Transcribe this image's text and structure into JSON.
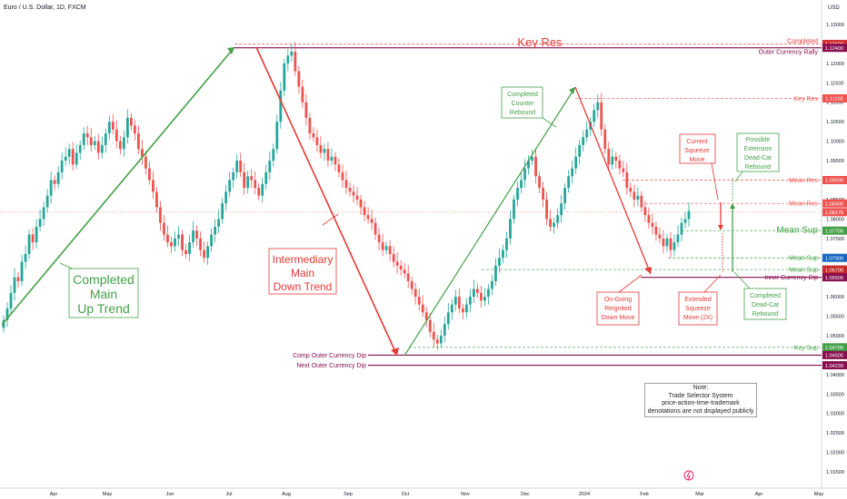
{
  "window": {
    "title": "Euro / U.S. Dollar, 1D, FXCM",
    "currency": "USD"
  },
  "note": {
    "lines": [
      "Note:",
      "Trade Selector System",
      "price-action-time-trademark",
      "denotations are not displayed publicly"
    ]
  },
  "chart_data": {
    "type": "candlestick",
    "title": "Euro / U.S. Dollar, 1D, FXCM",
    "ylim": [
      1.01,
      1.13
    ],
    "y_ticks": [
      "1.13000",
      "1.12500",
      "1.12000",
      "1.11500",
      "1.11000",
      "1.10500",
      "1.10000",
      "1.09500",
      "1.09000",
      "1.08500",
      "1.08000",
      "1.07500",
      "1.07000",
      "1.06500",
      "1.06000",
      "1.05500",
      "1.05000",
      "1.04500",
      "1.04000",
      "1.03500",
      "1.03000",
      "1.02500",
      "1.02000",
      "1.01500"
    ],
    "x_labels": [
      "Apr",
      "May",
      "Jun",
      "Jul",
      "Aug",
      "Sep",
      "Oct",
      "Nov",
      "Dec",
      "2024",
      "Feb",
      "Mar",
      "Apr",
      "May"
    ],
    "price_axis_labels": [
      {
        "value": "1.12500",
        "color": "#d32f2f"
      },
      {
        "value": "1.12400",
        "color": "#880e4f"
      },
      {
        "value": "1.11100",
        "color": "#ef5350"
      },
      {
        "value": "1.09000",
        "color": "#ef5350"
      },
      {
        "value": "1.08400",
        "color": "#ef5350"
      },
      {
        "value": "1.08175",
        "color": "#ef5350"
      },
      {
        "value": "1.07700",
        "color": "#43a047"
      },
      {
        "value": "1.07000",
        "color": "#1565c0"
      },
      {
        "value": "1.06700",
        "color": "#c62828"
      },
      {
        "value": "1.06500",
        "color": "#880e4f"
      },
      {
        "value": "1.04700",
        "color": "#43a047"
      },
      {
        "value": "1.04500",
        "color": "#880e4f"
      },
      {
        "value": "1.04239",
        "color": "#880e4f"
      }
    ],
    "levels": [
      {
        "label": "Completed",
        "value": 1.125,
        "color": "#e53935"
      },
      {
        "label": "Outer Currency Rally",
        "value": 1.124,
        "color": "#880e4f"
      },
      {
        "label": "Key Res",
        "value": 1.111,
        "color": "#ef5350"
      },
      {
        "label": "Mean Res",
        "value": 1.09,
        "color": "#ef5350"
      },
      {
        "label": "Mean Res",
        "value": 1.084,
        "color": "#ef5350"
      },
      {
        "label": "Mean Sup",
        "value": 1.077,
        "color": "#43a047"
      },
      {
        "label": "Mean Sup",
        "value": 1.07,
        "color": "#43a047"
      },
      {
        "label": "Mean Sup",
        "value": 1.067,
        "color": "#43a047"
      },
      {
        "label": "Inner Currency Dip",
        "value": 1.065,
        "color": "#880e4f"
      },
      {
        "label": "Key Sup",
        "value": 1.047,
        "color": "#43a047"
      },
      {
        "label": "Comp Outer Currency Dip",
        "value": 1.045,
        "color": "#880e4f"
      },
      {
        "label": "Next Outer Currency Dip",
        "value": 1.0424,
        "color": "#880e4f"
      }
    ],
    "candles_close": [
      1.054,
      1.057,
      1.061,
      1.065,
      1.064,
      1.069,
      1.071,
      1.076,
      1.074,
      1.078,
      1.08,
      1.083,
      1.086,
      1.09,
      1.089,
      1.092,
      1.095,
      1.096,
      1.098,
      1.094,
      1.097,
      1.099,
      1.102,
      1.101,
      1.099,
      1.1,
      1.097,
      1.099,
      1.102,
      1.105,
      1.103,
      1.1,
      1.098,
      1.101,
      1.106,
      1.104,
      1.102,
      1.098,
      1.096,
      1.093,
      1.09,
      1.087,
      1.083,
      1.079,
      1.076,
      1.074,
      1.073,
      1.075,
      1.076,
      1.072,
      1.071,
      1.074,
      1.077,
      1.075,
      1.072,
      1.07,
      1.073,
      1.076,
      1.078,
      1.08,
      1.084,
      1.087,
      1.09,
      1.092,
      1.095,
      1.092,
      1.088,
      1.091,
      1.09,
      1.088,
      1.086,
      1.089,
      1.092,
      1.095,
      1.098,
      1.105,
      1.113,
      1.12,
      1.122,
      1.123,
      1.118,
      1.114,
      1.11,
      1.106,
      1.102,
      1.101,
      1.099,
      1.097,
      1.098,
      1.095,
      1.096,
      1.094,
      1.092,
      1.09,
      1.088,
      1.087,
      1.086,
      1.085,
      1.083,
      1.081,
      1.08,
      1.079,
      1.076,
      1.074,
      1.072,
      1.073,
      1.071,
      1.069,
      1.068,
      1.067,
      1.066,
      1.064,
      1.062,
      1.06,
      1.058,
      1.056,
      1.054,
      1.051,
      1.049,
      1.048,
      1.05,
      1.053,
      1.056,
      1.058,
      1.06,
      1.057,
      1.056,
      1.058,
      1.06,
      1.062,
      1.061,
      1.059,
      1.06,
      1.062,
      1.064,
      1.068,
      1.07,
      1.072,
      1.075,
      1.08,
      1.085,
      1.088,
      1.09,
      1.093,
      1.095,
      1.096,
      1.091,
      1.088,
      1.085,
      1.08,
      1.078,
      1.079,
      1.081,
      1.084,
      1.088,
      1.091,
      1.093,
      1.096,
      1.099,
      1.101,
      1.103,
      1.105,
      1.108,
      1.11,
      1.103,
      1.098,
      1.094,
      1.096,
      1.095,
      1.093,
      1.092,
      1.088,
      1.087,
      1.085,
      1.086,
      1.083,
      1.081,
      1.079,
      1.078,
      1.076,
      1.075,
      1.073,
      1.075,
      1.072,
      1.074,
      1.076,
      1.079,
      1.08,
      1.082
    ]
  }
}
